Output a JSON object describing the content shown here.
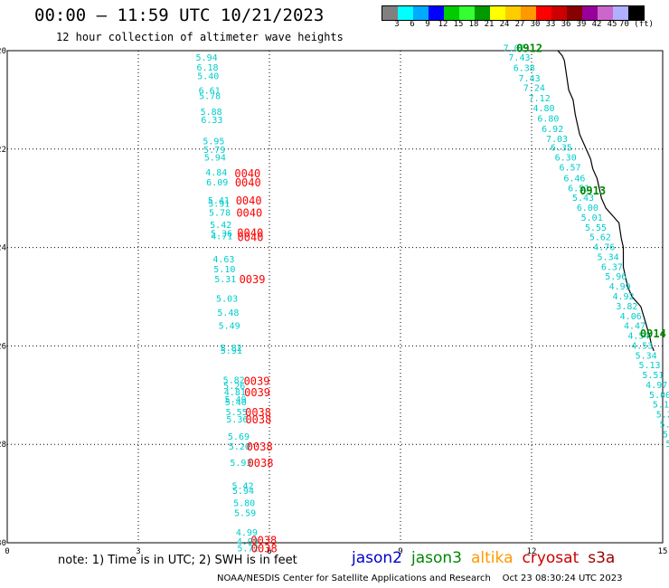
{
  "header": {
    "title": "00:00 – 11:59 UTC 10/21/2023",
    "subtitle": "12 hour collection of altimeter wave heights"
  },
  "colorbar": {
    "colors": [
      "#808080",
      "#00ffff",
      "#00aaff",
      "#0000ff",
      "#00cc00",
      "#33ff33",
      "#009900",
      "#ffff00",
      "#ffcc00",
      "#ff9900",
      "#ff0000",
      "#cc0000",
      "#880000",
      "#990099",
      "#cc66cc",
      "#b0b0ff",
      "#000000"
    ],
    "labels": [
      "3",
      "6",
      "9",
      "12",
      "15",
      "18",
      "21",
      "24",
      "27",
      "30",
      "33",
      "36",
      "39",
      "42",
      "45",
      "70 (ft)"
    ]
  },
  "map": {
    "x_ticks": [
      "0",
      "3",
      "6",
      "9",
      "12",
      "15"
    ],
    "y_ticks": [
      "-20",
      "-22",
      "-24",
      "-26",
      "-28",
      "-30"
    ],
    "colors": {
      "cryosat": "#ff0000",
      "swh": "#00cccc",
      "jason3_pass": "#008800",
      "coast": "#000000"
    },
    "cryosat_track": {
      "swh": [
        {
          "lat": -20.15,
          "v": "5.94"
        },
        {
          "lat": -20.35,
          "v": "6.18"
        },
        {
          "lat": -20.52,
          "v": "5.40"
        },
        {
          "lat": -20.82,
          "v": "6.61"
        },
        {
          "lat": -20.93,
          "v": "5.78"
        },
        {
          "lat": -21.25,
          "v": "5.88"
        },
        {
          "lat": -21.42,
          "v": "6.33"
        },
        {
          "lat": -21.85,
          "v": "5.95"
        },
        {
          "lat": -22.02,
          "v": "5.79"
        },
        {
          "lat": -22.18,
          "v": "5.94"
        },
        {
          "lat": -22.48,
          "v": "4.84"
        },
        {
          "lat": -22.68,
          "v": "6.09"
        },
        {
          "lat": -23.05,
          "v": "5.41"
        },
        {
          "lat": -23.12,
          "v": "5.91"
        },
        {
          "lat": -23.3,
          "v": "5.78"
        },
        {
          "lat": -23.55,
          "v": "5.42"
        },
        {
          "lat": -23.72,
          "v": "5.36"
        },
        {
          "lat": -23.78,
          "v": "4.71"
        },
        {
          "lat": -24.25,
          "v": "4.63"
        },
        {
          "lat": -24.45,
          "v": "5.10"
        },
        {
          "lat": -24.65,
          "v": "5.31"
        },
        {
          "lat": -25.05,
          "v": "5.03"
        },
        {
          "lat": -25.33,
          "v": "5.48"
        },
        {
          "lat": -25.6,
          "v": "5.49"
        },
        {
          "lat": -26.05,
          "v": "5.82"
        },
        {
          "lat": -26.1,
          "v": "5.91"
        },
        {
          "lat": -26.7,
          "v": "5.82"
        },
        {
          "lat": -26.82,
          "v": "5.26"
        },
        {
          "lat": -26.95,
          "v": "4.81"
        },
        {
          "lat": -27.1,
          "v": "5.49"
        },
        {
          "lat": -27.15,
          "v": "5.40"
        },
        {
          "lat": -27.35,
          "v": "5.55"
        },
        {
          "lat": -27.5,
          "v": "5.36"
        },
        {
          "lat": -27.85,
          "v": "5.69"
        },
        {
          "lat": -28.05,
          "v": "5.20"
        },
        {
          "lat": -28.38,
          "v": "5.93"
        },
        {
          "lat": -28.85,
          "v": "5.42"
        },
        {
          "lat": -28.95,
          "v": "5.94"
        },
        {
          "lat": -29.2,
          "v": "5.80"
        },
        {
          "lat": -29.4,
          "v": "5.59"
        },
        {
          "lat": -29.8,
          "v": "4.99"
        },
        {
          "lat": -29.98,
          "v": "4.90"
        },
        {
          "lat": -30.12,
          "v": "5.72"
        }
      ],
      "times": [
        {
          "lat": -22.5,
          "v": "0040"
        },
        {
          "lat": -22.68,
          "v": "0040"
        },
        {
          "lat": -23.05,
          "v": "0040"
        },
        {
          "lat": -23.3,
          "v": "0040"
        },
        {
          "lat": -23.7,
          "v": "0040"
        },
        {
          "lat": -23.8,
          "v": "0040"
        },
        {
          "lat": -24.65,
          "v": "0039"
        },
        {
          "lat": -26.72,
          "v": "0039"
        },
        {
          "lat": -26.95,
          "v": "0039"
        },
        {
          "lat": -27.35,
          "v": "0038"
        },
        {
          "lat": -27.5,
          "v": "0038"
        },
        {
          "lat": -28.05,
          "v": "0038"
        },
        {
          "lat": -28.38,
          "v": "0038"
        },
        {
          "lat": -29.95,
          "v": "0038"
        },
        {
          "lat": -30.12,
          "v": "0038"
        }
      ]
    },
    "jason3_track": {
      "swh": [
        {
          "lon": 11.6,
          "lat": -19.95,
          "v": "7.07"
        },
        {
          "lon": 11.72,
          "lat": -20.15,
          "v": "7.43"
        },
        {
          "lon": 11.83,
          "lat": -20.36,
          "v": "6.38"
        },
        {
          "lon": 11.95,
          "lat": -20.57,
          "v": "7.43"
        },
        {
          "lon": 12.06,
          "lat": -20.76,
          "v": "7.24"
        },
        {
          "lon": 12.18,
          "lat": -20.97,
          "v": "7.12"
        },
        {
          "lon": 12.28,
          "lat": -21.18,
          "v": "4.80"
        },
        {
          "lon": 12.38,
          "lat": -21.39,
          "v": "6.80"
        },
        {
          "lon": 12.48,
          "lat": -21.6,
          "v": "6.92"
        },
        {
          "lon": 12.58,
          "lat": -21.8,
          "v": "7.03"
        },
        {
          "lon": 12.68,
          "lat": -21.98,
          "v": "6.35"
        },
        {
          "lon": 12.78,
          "lat": -22.18,
          "v": "6.30"
        },
        {
          "lon": 12.88,
          "lat": -22.38,
          "v": "6.57"
        },
        {
          "lon": 12.98,
          "lat": -22.6,
          "v": "6.46"
        },
        {
          "lon": 13.08,
          "lat": -22.8,
          "v": "6.51"
        },
        {
          "lon": 13.18,
          "lat": -23.0,
          "v": "5.43"
        },
        {
          "lon": 13.28,
          "lat": -23.2,
          "v": "6.00"
        },
        {
          "lon": 13.38,
          "lat": -23.4,
          "v": "5.01"
        },
        {
          "lon": 13.47,
          "lat": -23.6,
          "v": "5.55"
        },
        {
          "lon": 13.57,
          "lat": -23.8,
          "v": "5.62"
        },
        {
          "lon": 13.66,
          "lat": -24.0,
          "v": "4.76"
        },
        {
          "lon": 13.75,
          "lat": -24.2,
          "v": "5.34"
        },
        {
          "lon": 13.84,
          "lat": -24.4,
          "v": "6.37"
        },
        {
          "lon": 13.93,
          "lat": -24.6,
          "v": "5.96"
        },
        {
          "lon": 14.02,
          "lat": -24.8,
          "v": "4.99"
        },
        {
          "lon": 14.1,
          "lat": -25.0,
          "v": "4.92"
        },
        {
          "lon": 14.18,
          "lat": -25.2,
          "v": "3.82"
        },
        {
          "lon": 14.27,
          "lat": -25.4,
          "v": "4.06"
        },
        {
          "lon": 14.36,
          "lat": -25.6,
          "v": "4.47"
        },
        {
          "lon": 14.45,
          "lat": -25.8,
          "v": "4.54"
        },
        {
          "lon": 14.53,
          "lat": -26.0,
          "v": "4.53"
        },
        {
          "lon": 14.62,
          "lat": -26.2,
          "v": "5.34"
        },
        {
          "lon": 14.7,
          "lat": -26.4,
          "v": "5.13"
        },
        {
          "lon": 14.78,
          "lat": -26.6,
          "v": "5.51"
        },
        {
          "lon": 14.86,
          "lat": -26.8,
          "v": "4.97"
        },
        {
          "lon": 14.94,
          "lat": -27.0,
          "v": "5.00"
        },
        {
          "lon": 15.02,
          "lat": -27.2,
          "v": "5.10"
        },
        {
          "lon": 15.1,
          "lat": -27.4,
          "v": "5.29"
        },
        {
          "lon": 15.18,
          "lat": -27.6,
          "v": "5.15"
        },
        {
          "lon": 15.25,
          "lat": -27.8,
          "v": "5.89"
        },
        {
          "lon": 15.32,
          "lat": -28.0,
          "v": "5.31"
        },
        {
          "lon": 15.38,
          "lat": -28.2,
          "v": "4.27"
        },
        {
          "lon": 15.44,
          "lat": -28.4,
          "v": "5"
        },
        {
          "lon": 15.5,
          "lat": -28.6,
          "v": "5"
        }
      ],
      "times": [
        {
          "lon": 11.95,
          "lat": -19.95,
          "v": "0912"
        },
        {
          "lon": 13.4,
          "lat": -22.85,
          "v": "0913"
        },
        {
          "lon": 14.78,
          "lat": -25.75,
          "v": "0914"
        }
      ]
    },
    "coastline": [
      [
        12.6,
        -20.0
      ],
      [
        12.7,
        -20.1
      ],
      [
        12.75,
        -20.2
      ],
      [
        12.8,
        -20.5
      ],
      [
        12.85,
        -20.8
      ],
      [
        12.95,
        -21.0
      ],
      [
        13.0,
        -21.3
      ],
      [
        13.05,
        -21.5
      ],
      [
        13.1,
        -21.7
      ],
      [
        13.2,
        -21.9
      ],
      [
        13.3,
        -22.1
      ],
      [
        13.35,
        -22.2
      ],
      [
        13.4,
        -22.4
      ],
      [
        13.5,
        -22.6
      ],
      [
        13.55,
        -22.8
      ],
      [
        13.6,
        -23.0
      ],
      [
        13.7,
        -23.2
      ],
      [
        14.0,
        -23.5
      ],
      [
        14.05,
        -23.8
      ],
      [
        14.1,
        -24.0
      ],
      [
        14.1,
        -24.4
      ],
      [
        14.2,
        -24.8
      ],
      [
        14.3,
        -25.0
      ],
      [
        14.5,
        -25.2
      ],
      [
        14.6,
        -25.5
      ],
      [
        14.7,
        -25.8
      ],
      [
        14.75,
        -26.0
      ],
      [
        14.8,
        -26.1
      ]
    ]
  },
  "footer": {
    "note": "note: 1) Time is in UTC; 2) SWH is in feet",
    "legend": [
      {
        "label": "jason2",
        "color": "#0000cc"
      },
      {
        "label": "jason3",
        "color": "#008800"
      },
      {
        "label": "altika",
        "color": "#ff9900"
      },
      {
        "label": "cryosat",
        "color": "#cc0000"
      },
      {
        "label": "s3a",
        "color": "#990000"
      }
    ],
    "credit": "NOAA/NESDIS Center for Satellite Applications and Research    Oct 23 08:30:24 UTC 2023"
  }
}
